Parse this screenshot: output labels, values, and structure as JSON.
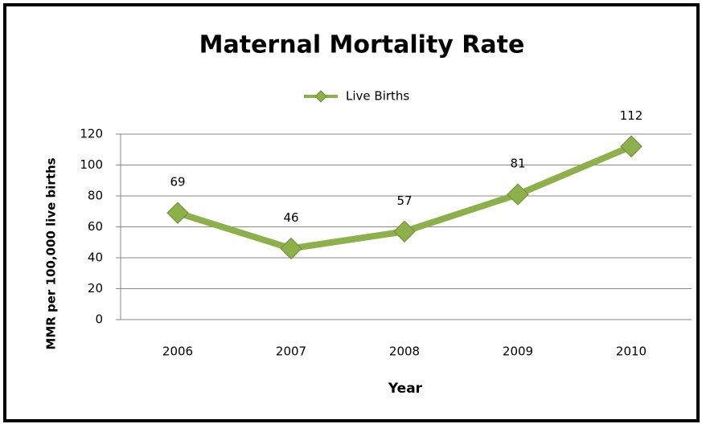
{
  "chart_data": {
    "type": "line",
    "title": "Maternal Mortality Rate",
    "categories": [
      "2006",
      "2007",
      "2008",
      "2009",
      "2010"
    ],
    "series": [
      {
        "name": "Live Births",
        "color": "#8db04a",
        "values": [
          69,
          46,
          57,
          81,
          112
        ]
      }
    ],
    "xlabel": "Year",
    "ylabel": "MMR per 100,000 live births",
    "ylim": [
      0,
      120
    ],
    "yticks": [
      0,
      20,
      40,
      60,
      80,
      100,
      120
    ],
    "grid": true,
    "legend": "top"
  }
}
